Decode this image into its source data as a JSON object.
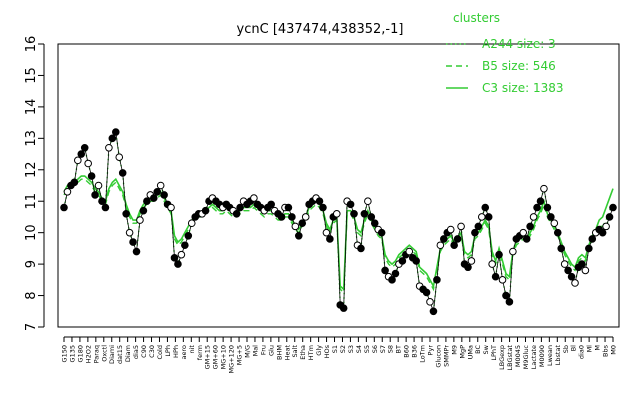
{
  "chart_data": {
    "type": "line",
    "title": "ycnC [437474,438352,-1]",
    "xlabel": "",
    "ylabel": "",
    "ylim": [
      7,
      16
    ],
    "yticks": [
      7,
      8,
      9,
      10,
      11,
      12,
      13,
      14,
      15,
      16
    ],
    "grid": false,
    "legend": {
      "position": "top-right",
      "title": "clusters",
      "entries": [
        {
          "label": "A244 size: 3",
          "style": "dotted"
        },
        {
          "label": "B5 size: 546",
          "style": "dashed"
        },
        {
          "label": "C3 size: 1383",
          "style": "solid"
        }
      ]
    },
    "colors": {
      "series": "#33cc33",
      "points": "#000000"
    },
    "xtick_labels": [
      "G150",
      "G135",
      "G180",
      "H2O2",
      "Paraq",
      "Oxctl",
      "Diami",
      "dat15",
      "Diam",
      "dia5",
      "C90",
      "C30",
      "Cold",
      "LPh",
      "HPh",
      "aero",
      "nit",
      "ferm",
      "GM+15",
      "GM+60",
      "MG+10",
      "MG+120",
      "MG+5",
      "M/G",
      "Mal",
      "Fru",
      "Glu",
      "BHM",
      "Heat",
      "Salt",
      "Etha",
      "HTm",
      "Gly",
      "HOs",
      "S1",
      "S2",
      "S3",
      "S4",
      "S5",
      "S6",
      "S7",
      "S8",
      "BT",
      "B60",
      "B36",
      "LoTm",
      "Pyr",
      "Glucon",
      "SMMPr",
      "M9",
      "MgP",
      "UMa",
      "BC",
      "Sw",
      "LPhT",
      "LBGexp",
      "LBGstat",
      "M0045",
      "M9Gluc",
      "Lactate",
      "M0090",
      "Lwean",
      "Lbstat",
      "Sb",
      "Bl",
      "dia0",
      "Ml",
      "M",
      "Bbs",
      "M0"
    ],
    "x": [
      1,
      2,
      3,
      4,
      5,
      6,
      7,
      8,
      9,
      10,
      11,
      12,
      13,
      14,
      15,
      16,
      17,
      18,
      19,
      20,
      21,
      22,
      23,
      24,
      25,
      26,
      27,
      28,
      29,
      30,
      31,
      32,
      33,
      34,
      35,
      36,
      37,
      38,
      39,
      40,
      41,
      42,
      43,
      44,
      45,
      46,
      47,
      48,
      49,
      50,
      51,
      52,
      53,
      54,
      55,
      56,
      57,
      58,
      59,
      60,
      61,
      62,
      63,
      64,
      65,
      66,
      67,
      68,
      69,
      70,
      71,
      72,
      73,
      74,
      75,
      76,
      77,
      78,
      79,
      80,
      81,
      82,
      83,
      84,
      85,
      86,
      87,
      88,
      89,
      90,
      91,
      92,
      93,
      94,
      95,
      96,
      97,
      98,
      99,
      100,
      101,
      102,
      103,
      104,
      105,
      106,
      107,
      108,
      109,
      110,
      111,
      112,
      113,
      114,
      115,
      116,
      117,
      118,
      119,
      120,
      121,
      122,
      123,
      124,
      125,
      126,
      127,
      128,
      129,
      130,
      131,
      132,
      133,
      134,
      135,
      136,
      137,
      138,
      139,
      140,
      141,
      142,
      143,
      144,
      145,
      146,
      147,
      148,
      149,
      150,
      151,
      152,
      153,
      154,
      155,
      156,
      157,
      158,
      159,
      160
    ],
    "series": [
      {
        "name": "",
        "values": [
          10.8,
          11.3,
          11.5,
          11.6,
          12.3,
          12.5,
          12.7,
          12.2,
          11.8,
          11.2,
          11.5,
          11.0,
          10.8,
          12.7,
          13.0,
          13.2,
          12.4,
          11.9,
          10.6,
          10.0,
          9.7,
          9.4,
          10.4,
          10.7,
          11.0,
          11.2,
          11.1,
          11.3,
          11.5,
          11.2,
          10.9,
          10.8,
          9.2,
          9.0,
          9.3,
          9.6,
          9.9,
          10.3,
          10.5,
          10.6,
          10.6,
          10.7,
          11.0,
          11.1,
          11.0,
          10.9,
          10.8,
          10.9,
          10.8,
          10.7,
          10.6,
          10.8,
          11.0,
          10.9,
          11.0,
          11.1,
          10.9,
          10.8,
          10.7,
          10.8,
          10.9,
          10.7,
          10.6,
          10.5,
          10.8,
          10.8,
          10.5,
          10.2,
          9.9,
          10.3,
          10.5,
          10.9,
          11.0,
          11.1,
          11.0,
          10.8,
          10.0,
          9.8,
          10.5,
          10.6,
          7.7,
          7.6,
          11.0,
          10.9,
          10.6,
          9.6,
          9.5,
          10.6,
          11.0,
          10.5,
          10.3,
          10.1,
          10.0,
          8.8,
          8.6,
          8.5,
          8.7,
          9.0,
          9.1,
          9.3,
          9.4,
          9.2,
          9.1,
          8.3,
          8.2,
          8.1,
          7.8,
          7.5,
          8.5,
          9.6,
          9.8,
          10.0,
          10.1,
          9.6,
          9.8,
          10.2,
          9.0,
          8.9,
          9.1,
          10.0,
          10.2,
          10.5,
          10.8,
          10.5,
          9.0,
          8.6,
          9.3,
          8.5,
          8.0,
          7.8,
          9.4,
          9.8,
          9.9,
          10.0,
          9.8,
          10.2,
          10.5,
          10.8,
          11.0,
          11.4,
          10.8,
          10.5,
          10.3,
          10.0,
          9.5,
          9.0,
          8.8,
          8.6,
          8.4,
          8.9,
          9.0,
          8.8,
          9.5,
          9.8,
          10.0,
          10.1,
          10.0,
          10.2,
          10.5,
          10.8
        ]
      },
      {
        "name": "",
        "values": [
          11.2,
          11.4,
          11.5,
          11.5,
          11.6,
          11.7,
          11.7,
          11.6,
          11.5,
          11.3,
          11.2,
          11.0,
          10.9,
          11.3,
          11.5,
          11.6,
          11.4,
          11.2,
          10.8,
          10.5,
          10.3,
          10.3,
          10.6,
          10.8,
          10.9,
          11.0,
          11.0,
          11.1,
          11.2,
          11.0,
          10.8,
          10.6,
          9.8,
          9.6,
          9.7,
          9.9,
          10.1,
          10.3,
          10.4,
          10.5,
          10.5,
          10.6,
          10.7,
          10.8,
          10.7,
          10.6,
          10.6,
          10.7,
          10.6,
          10.5,
          10.5,
          10.6,
          10.7,
          10.7,
          10.7,
          10.8,
          10.7,
          10.6,
          10.5,
          10.6,
          10.6,
          10.5,
          10.4,
          10.4,
          10.5,
          10.5,
          10.3,
          10.1,
          10.0,
          10.2,
          10.4,
          10.7,
          10.8,
          10.9,
          10.8,
          10.6,
          10.2,
          10.0,
          10.3,
          10.4,
          8.2,
          8.1,
          10.6,
          10.6,
          10.4,
          10.0,
          9.9,
          10.3,
          10.6,
          10.3,
          10.1,
          9.9,
          9.8,
          9.2,
          9.0,
          8.9,
          9.0,
          9.2,
          9.3,
          9.4,
          9.5,
          9.4,
          9.3,
          8.8,
          8.7,
          8.6,
          8.4,
          8.2,
          8.8,
          9.4,
          9.6,
          9.7,
          9.8,
          9.6,
          9.7,
          9.9,
          9.3,
          9.2,
          9.3,
          9.8,
          9.9,
          10.1,
          10.3,
          10.1,
          9.3,
          9.0,
          9.4,
          9.0,
          8.6,
          8.5,
          9.3,
          9.6,
          9.7,
          9.8,
          9.7,
          9.9,
          10.1,
          10.4,
          10.6,
          10.9,
          10.5,
          10.3,
          10.1,
          9.9,
          9.6,
          9.3,
          9.1,
          8.9,
          8.8,
          9.1,
          9.2,
          9.1,
          9.5,
          9.8,
          10.0,
          10.2,
          10.2,
          10.4,
          10.7,
          11.0
        ]
      },
      {
        "name": "",
        "values": [
          11.3,
          11.5,
          11.6,
          11.6,
          11.7,
          11.8,
          11.8,
          11.7,
          11.6,
          11.4,
          11.3,
          11.1,
          11.0,
          11.4,
          11.6,
          11.7,
          11.5,
          11.3,
          10.9,
          10.6,
          10.4,
          10.4,
          10.7,
          10.9,
          11.0,
          11.1,
          11.1,
          11.2,
          11.3,
          11.1,
          10.9,
          10.7,
          9.9,
          9.7,
          9.8,
          10.0,
          10.2,
          10.4,
          10.5,
          10.6,
          10.6,
          10.7,
          10.8,
          10.9,
          10.8,
          10.7,
          10.7,
          10.8,
          10.7,
          10.6,
          10.6,
          10.7,
          10.8,
          10.8,
          10.8,
          10.9,
          10.8,
          10.7,
          10.6,
          10.7,
          10.7,
          10.6,
          10.5,
          10.5,
          10.6,
          10.6,
          10.4,
          10.2,
          10.1,
          10.3,
          10.5,
          10.8,
          10.9,
          11.0,
          10.9,
          10.7,
          10.3,
          10.1,
          10.4,
          10.5,
          8.3,
          8.2,
          10.7,
          10.7,
          10.5,
          10.1,
          10.0,
          10.4,
          10.7,
          10.4,
          10.2,
          10.0,
          9.9,
          9.3,
          9.1,
          9.0,
          9.1,
          9.3,
          9.4,
          9.5,
          9.6,
          9.5,
          9.4,
          8.9,
          8.8,
          8.7,
          8.5,
          8.3,
          8.9,
          9.5,
          9.7,
          9.8,
          9.9,
          9.7,
          9.8,
          10.0,
          9.4,
          9.3,
          9.4,
          9.9,
          10.0,
          10.2,
          10.4,
          10.2,
          9.4,
          9.1,
          9.5,
          9.1,
          8.7,
          8.6,
          9.4,
          9.7,
          9.8,
          9.9,
          9.8,
          10.0,
          10.2,
          10.5,
          10.7,
          11.0,
          10.6,
          10.4,
          10.2,
          10.0,
          9.7,
          9.4,
          9.2,
          9.0,
          8.9,
          9.2,
          9.3,
          9.2,
          9.6,
          9.9,
          10.1,
          10.4,
          10.5,
          10.8,
          11.1,
          11.4
        ]
      }
    ]
  }
}
